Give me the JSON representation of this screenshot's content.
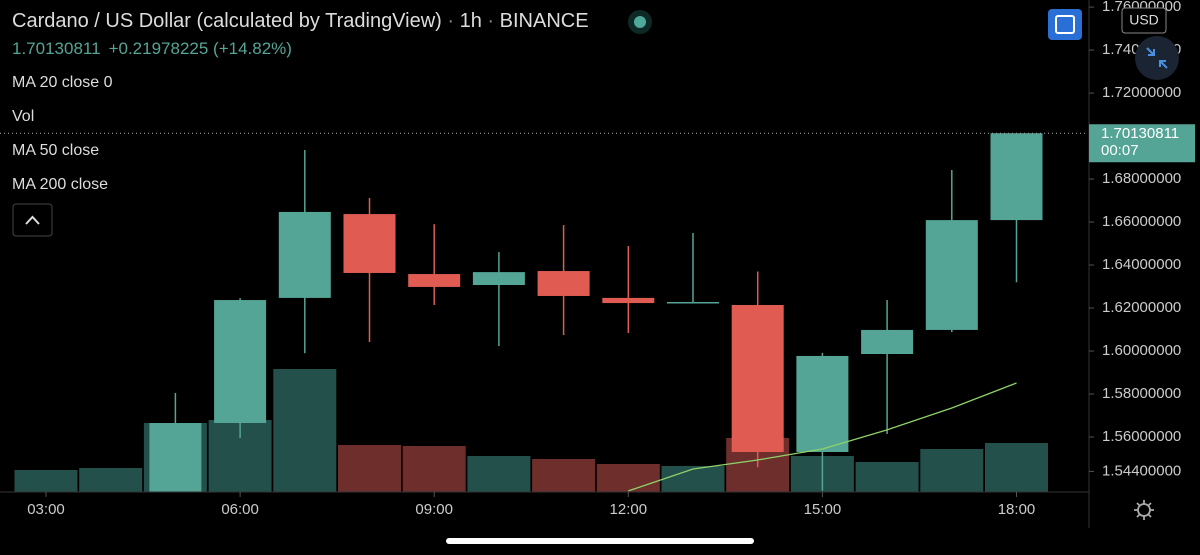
{
  "header": {
    "symbol": "Cardano / US Dollar (calculated by TradingView)",
    "interval": "1h",
    "exchange": "BINANCE",
    "change": "+0.21978225 (+14.82%)"
  },
  "indicators": [
    "MA 20 close 0",
    "Vol",
    "MA 50 close",
    "MA 200 close"
  ],
  "chart_data": {
    "type": "candlestick",
    "categories": [
      "03:00",
      null,
      null,
      "06:00",
      null,
      null,
      "09:00",
      null,
      null,
      "12:00",
      null,
      null,
      "15:00",
      null,
      null,
      "18:00"
    ],
    "open": [
      null,
      null,
      1.534,
      1.5665,
      1.6247,
      1.6637,
      1.6358,
      1.6307,
      1.6372,
      1.6247,
      1.6226,
      1.6214,
      1.553,
      1.5986,
      1.6098,
      1.6609
    ],
    "high": [
      null,
      null,
      1.5805,
      1.6246,
      1.6935,
      1.6712,
      1.659,
      1.646,
      1.6586,
      1.6488,
      1.6549,
      1.637,
      1.5991,
      1.6237,
      1.6842,
      1.7013
    ],
    "low": [
      null,
      null,
      1.53,
      1.5595,
      1.599,
      1.6042,
      1.6214,
      1.6023,
      1.6074,
      1.6084,
      1.6223,
      1.546,
      1.535,
      1.5614,
      1.6088,
      1.632
    ],
    "close": [
      null,
      null,
      1.5665,
      1.6237,
      1.6647,
      1.6363,
      1.6298,
      1.6367,
      1.6256,
      1.6223,
      1.6228,
      1.553,
      1.5977,
      1.6098,
      1.6609,
      1.70130811
    ],
    "volume": [
      22,
      24,
      69,
      72,
      123,
      47,
      46,
      36,
      33,
      28,
      26,
      54,
      36,
      30,
      43,
      49
    ],
    "volume_colors": [
      "#23504a",
      "#23504a",
      "#23504a",
      "#23504a",
      "#23504a",
      "#6e2f2c",
      "#6e2f2c",
      "#23504a",
      "#6e2f2c",
      "#6e2f2c",
      "#23504a",
      "#6e2f2c",
      "#23504a",
      "#23504a",
      "#23504a",
      "#23504a"
    ],
    "ma": [
      null,
      null,
      null,
      null,
      null,
      null,
      null,
      null,
      null,
      1.5349,
      1.5451,
      1.5493,
      1.5544,
      1.5633,
      1.5735,
      1.5851
    ],
    "ma_color": "#8fd26a",
    "up_color": "#55a597",
    "down_color": "#e05c52",
    "ylim": [
      1.5344,
      1.7633
    ],
    "yticks": [
      {
        "value": 1.76,
        "label": "1.76000000"
      },
      {
        "value": 1.74,
        "label": "1.74000000"
      },
      {
        "value": 1.72,
        "label": "1.72000000"
      },
      {
        "value": 1.68,
        "label": "1.68000000"
      },
      {
        "value": 1.66,
        "label": "1.66000000"
      },
      {
        "value": 1.64,
        "label": "1.64000000"
      },
      {
        "value": 1.62,
        "label": "1.62000000"
      },
      {
        "value": 1.6,
        "label": "1.60000000"
      },
      {
        "value": 1.58,
        "label": "1.58000000"
      },
      {
        "value": 1.56,
        "label": "1.56000000"
      },
      {
        "value": 1.544,
        "label": "1.54400000"
      }
    ],
    "last_price": 1.70130811,
    "countdown": "00:07",
    "currency": "USD"
  }
}
